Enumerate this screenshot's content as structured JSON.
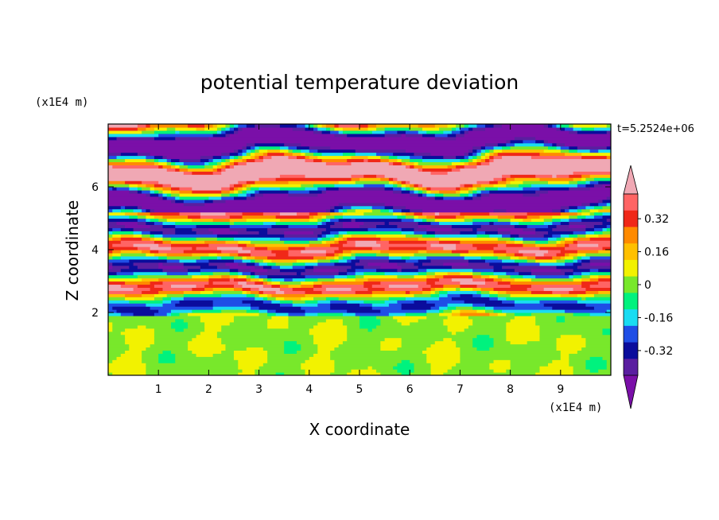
{
  "chart_data": {
    "type": "heatmap",
    "title": "potential temperature deviation",
    "xlabel": "X coordinate",
    "ylabel": "Z coordinate",
    "x_unit": "(x1E4 m)",
    "y_unit": "(x1E4 m)",
    "time_label": "t=5.2524e+06",
    "xlim": [
      0,
      10
    ],
    "ylim": [
      0,
      8
    ],
    "x_ticks": [
      1,
      2,
      3,
      4,
      5,
      6,
      7,
      8,
      9
    ],
    "y_ticks": [
      2,
      4,
      6
    ],
    "colorbar": {
      "levels": [
        -0.48,
        -0.4,
        -0.32,
        -0.24,
        -0.16,
        -0.08,
        0,
        0.08,
        0.16,
        0.24,
        0.32,
        0.4,
        0.48
      ],
      "labels": [
        "0.32",
        "0.16",
        "0",
        "-0.16",
        "-0.32"
      ],
      "label_values": [
        0.32,
        0.16,
        0,
        -0.16,
        -0.32
      ],
      "colors": [
        "#7a0fa8",
        "#5a1ea0",
        "#0b0c9c",
        "#1f4ee6",
        "#19dcf2",
        "#00f27e",
        "#78e82b",
        "#f2f200",
        "#ffc000",
        "#ff8a00",
        "#f02818",
        "#ff6464",
        "#f0a8b4"
      ]
    }
  }
}
